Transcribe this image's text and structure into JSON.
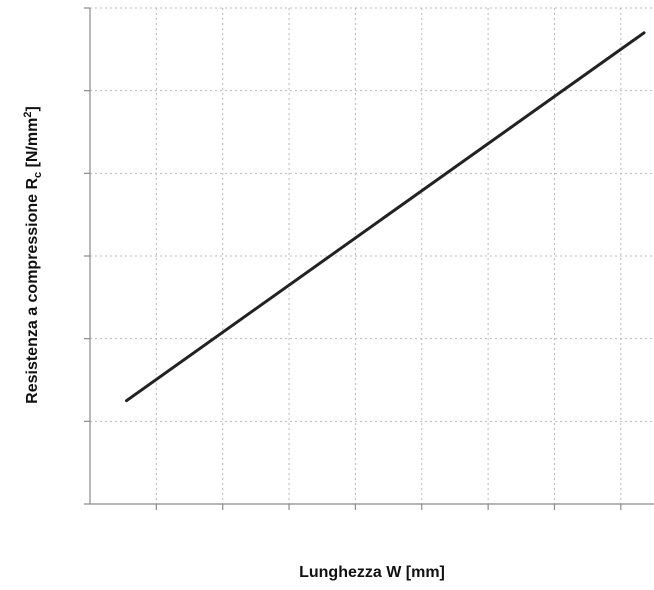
{
  "chart_data": {
    "type": "line",
    "title": "",
    "xlabel": "Lunghezza W [mm]",
    "ylabel": {
      "main": "Resistenza a compressione R",
      "subscript": "c",
      "unit_open": " [N/mm",
      "superscript": "2",
      "unit_close": "]"
    },
    "xlim": [
      0,
      8.5
    ],
    "ylim": [
      0,
      6
    ],
    "x_gridlines": [
      1,
      2,
      3,
      4,
      5,
      6,
      7,
      8
    ],
    "y_gridlines": [
      1,
      2,
      3,
      4,
      5,
      6
    ],
    "grid": true,
    "grid_style": "dotted",
    "tick_labels_shown": false,
    "series": [
      {
        "color": "#222222",
        "points": [
          {
            "x": 0.55,
            "y": 1.25
          },
          {
            "x": 8.35,
            "y": 5.7
          }
        ]
      }
    ]
  }
}
